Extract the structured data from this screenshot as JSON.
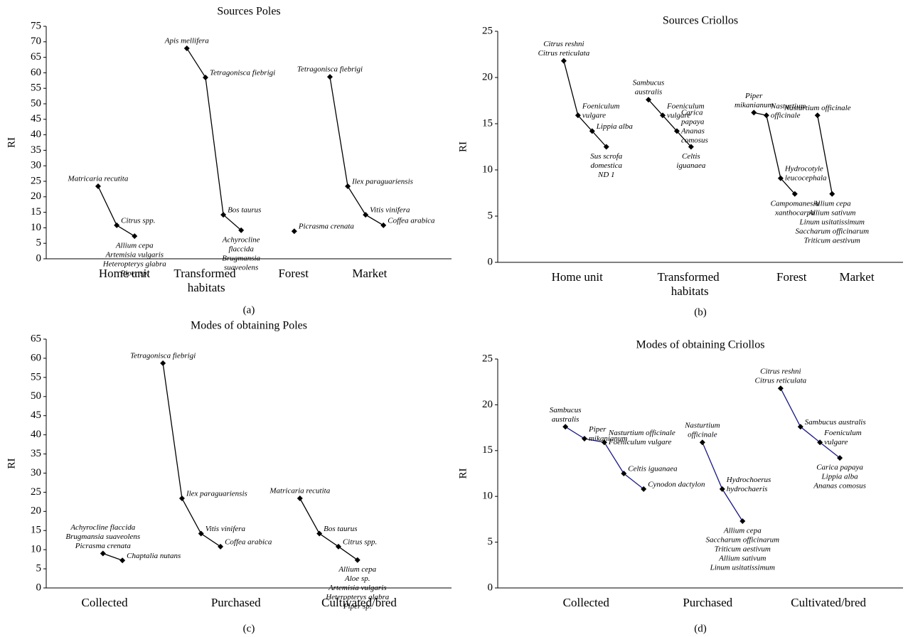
{
  "chart_data": [
    {
      "type": "line",
      "title": "Sources Poles",
      "ylabel": "RI",
      "caption": "(a)",
      "line_color": "#000000",
      "xlim": [
        0,
        100
      ],
      "ylim": [
        0,
        75
      ],
      "yticks": [
        0,
        5,
        10,
        15,
        20,
        25,
        30,
        35,
        40,
        45,
        50,
        55,
        60,
        65,
        70,
        75
      ],
      "xticks": [
        {
          "value": 19.3,
          "label": "Home unit"
        },
        {
          "value": 39.5,
          "label": "Transformed habitats"
        },
        {
          "value": 61,
          "label": "Forest"
        },
        {
          "value": 79.8,
          "label": "Market"
        }
      ],
      "series": [
        {
          "x": [
            12.8,
            17.4,
            21.8
          ],
          "values": [
            23.4,
            10.8,
            7.3
          ],
          "labels": [
            [
              "Matricaria recutita"
            ],
            [
              "Citrus spp."
            ],
            [
              "Allium cepa",
              "Artemisia vulgaris",
              "Heteropterys glabra",
              "Piper sp."
            ]
          ]
        },
        {
          "x": [
            34.7,
            39.3,
            43.7,
            48.1
          ],
          "values": [
            67.9,
            58.5,
            14.2,
            9.2
          ],
          "labels": [
            [
              "Apis mellifera"
            ],
            [
              "Tetragonisca fiebrigi"
            ],
            [
              "Bos taurus"
            ],
            [
              "Achyrocline",
              "flaccida",
              "Brugmansia",
              "suaveolens"
            ]
          ]
        },
        {
          "x": [
            61.2
          ],
          "values": [
            8.9
          ],
          "labels": [
            [
              "Picrasma crenata"
            ]
          ]
        },
        {
          "x": [
            70,
            74.4,
            78.8,
            83.2
          ],
          "values": [
            58.7,
            23.4,
            14.2,
            10.8
          ],
          "labels": [
            [
              "Tetragonisca fiebrigi"
            ],
            [
              "Ilex paraguariensis"
            ],
            [
              "Vitis vinifera"
            ],
            [
              "Coffea arabica"
            ]
          ]
        }
      ]
    },
    {
      "type": "line",
      "title": "Sources Criollos",
      "ylabel": "RI",
      "caption": "(b)",
      "line_color": "#000000",
      "xlim": [
        0,
        100
      ],
      "ylim": [
        0,
        25
      ],
      "yticks": [
        0,
        5,
        10,
        15,
        20,
        25
      ],
      "xticks": [
        {
          "value": 19.6,
          "label": "Home unit"
        },
        {
          "value": 47.4,
          "label": "Transformed habitats"
        },
        {
          "value": 72.5,
          "label": "Forest"
        },
        {
          "value": 88.6,
          "label": "Market"
        }
      ],
      "series": [
        {
          "x": [
            16.3,
            19.8,
            23.3,
            26.8
          ],
          "values": [
            21.8,
            15.9,
            14.2,
            12.5
          ],
          "labels": [
            [
              "Citrus reshni",
              "Citrus reticulata"
            ],
            [
              "Foeniculum",
              "vulgare"
            ],
            [
              "Lippia alba"
            ],
            [
              "Sus scrofa",
              "domestica",
              "ND 1"
            ]
          ]
        },
        {
          "x": [
            37.2,
            40.7,
            44.2,
            47.7
          ],
          "values": [
            17.6,
            15.9,
            14.2,
            12.5
          ],
          "labels": [
            [
              "Sambucus",
              "australis"
            ],
            [
              "Foeniculum",
              "vulgare"
            ],
            [
              "Carica",
              "papaya",
              "Ananas",
              "comosus"
            ],
            [
              "Celtis",
              "iguanaea"
            ]
          ]
        },
        {
          "x": [
            63.2,
            66.3,
            69.8,
            73.3
          ],
          "values": [
            16.2,
            15.9,
            9.1,
            7.4
          ],
          "labels": [
            [
              "Piper",
              "mikanianum"
            ],
            [
              "Nasturtium",
              "officinale"
            ],
            [
              "Hydrocotyle",
              "leucocephala"
            ],
            [
              "Campomanesia",
              "xanthocarpa"
            ]
          ]
        },
        {
          "x": [
            78.9,
            82.5
          ],
          "values": [
            15.9,
            7.4
          ],
          "labels": [
            [
              "Nasturtium officinale"
            ],
            [
              "Allium cepa",
              "Allium sativum",
              "Linum usitatissimum",
              "Saccharum officinarum",
              "Triticum aestivum"
            ]
          ]
        }
      ]
    },
    {
      "type": "line",
      "title": "Modes of obtaining Poles",
      "ylabel": "RI",
      "caption": "(c)",
      "line_color": "#000000",
      "xlim": [
        0,
        100
      ],
      "ylim": [
        0,
        65
      ],
      "yticks": [
        0,
        5,
        10,
        15,
        20,
        25,
        30,
        35,
        40,
        45,
        50,
        55,
        60,
        65
      ],
      "xticks": [
        {
          "value": 14.4,
          "label": "Collected"
        },
        {
          "value": 46.8,
          "label": "Purchased"
        },
        {
          "value": 77.2,
          "label": "Cultivated/bred"
        }
      ],
      "series": [
        {
          "x": [
            14.0,
            18.8
          ],
          "values": [
            9.0,
            7.2
          ],
          "labels": [
            [
              "Achyrocline flaccida",
              "Brugmansia suaveolens",
              "Picrasma crenata"
            ],
            [
              "Chaptalia nutans"
            ]
          ]
        },
        {
          "x": [
            28.8,
            33.5,
            38.2,
            43.0
          ],
          "values": [
            58.7,
            23.4,
            14.2,
            10.8
          ],
          "labels": [
            [
              "Tetragonisca fiebrigi"
            ],
            [
              "Ilex paraguariensis"
            ],
            [
              "Vitis vinifera"
            ],
            [
              "Coffea arabica"
            ]
          ]
        },
        {
          "x": [
            62.6,
            67.4,
            72.1,
            76.8
          ],
          "values": [
            23.4,
            14.2,
            10.8,
            7.3
          ],
          "labels": [
            [
              "Matricaria recutita"
            ],
            [
              "Bos taurus"
            ],
            [
              "Citrus spp."
            ],
            [
              "Allium cepa",
              "Aloe sp.",
              "Artemisia vulgaris",
              "Heteropterys glabra",
              "Piper sp."
            ]
          ]
        }
      ]
    },
    {
      "type": "line",
      "title": "Modes of obtaining Criollos",
      "ylabel": "RI",
      "caption": "(d)",
      "line_color": "#1a1a80",
      "xlim": [
        0,
        100
      ],
      "ylim": [
        0,
        25
      ],
      "yticks": [
        0,
        5,
        10,
        15,
        20,
        25
      ],
      "xticks": [
        {
          "value": 21.8,
          "label": "Collected"
        },
        {
          "value": 51.8,
          "label": "Purchased"
        },
        {
          "value": 81.6,
          "label": "Cultivated/bred"
        }
      ],
      "series": [
        {
          "x": [
            16.7,
            21.4,
            26.3,
            31.1,
            36.0
          ],
          "values": [
            17.6,
            16.3,
            15.9,
            12.5,
            10.8
          ],
          "labels": [
            [
              "Sambucus",
              "australis"
            ],
            [
              "Piper",
              "mikanianum"
            ],
            [
              "Nasturtium officinale",
              "Foeniculum vulgare"
            ],
            [
              "Celtis iguanaea"
            ],
            [
              "Cynodon dactylon"
            ]
          ]
        },
        {
          "x": [
            50.5,
            55.4,
            60.4
          ],
          "values": [
            15.9,
            10.8,
            7.3
          ],
          "labels": [
            [
              "Nasturtium",
              "officinale"
            ],
            [
              "Hydrochoerus",
              "hydrochaeris"
            ],
            [
              "Allium cepa",
              "Saccharum officinarum",
              "Triticum aestivum",
              "Allium sativum",
              "Linum usitatissimum"
            ]
          ]
        },
        {
          "x": [
            69.8,
            74.7,
            79.5,
            84.4
          ],
          "values": [
            21.8,
            17.6,
            15.9,
            14.2
          ],
          "labels": [
            [
              "Citrus reshni",
              "Citrus reticulata"
            ],
            [
              "Sambucus australis"
            ],
            [
              "Foeniculum",
              "vulgare"
            ],
            [
              "Carica papaya",
              "Lippia alba",
              "Ananas comosus"
            ]
          ]
        }
      ]
    }
  ]
}
